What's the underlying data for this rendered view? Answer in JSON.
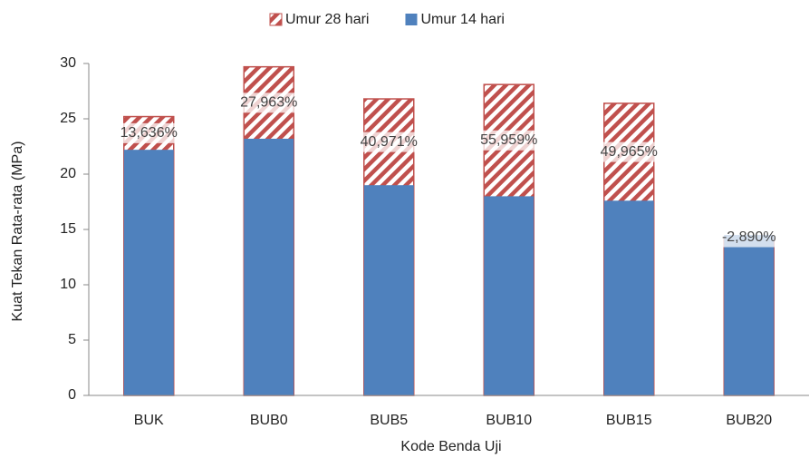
{
  "chart_data": {
    "type": "bar",
    "xlabel": "Kode Benda Uji",
    "ylabel": "Kuat Tekan Rata-rata (MPa)",
    "categories": [
      "BUK",
      "BUB0",
      "BUB5",
      "BUB10",
      "BUB15",
      "BUB20"
    ],
    "series": [
      {
        "name": "Umur 28 hari",
        "color": "#c0504d",
        "hatch": true,
        "values": [
          25.2,
          29.7,
          26.8,
          28.1,
          26.4,
          14.1
        ]
      },
      {
        "name": "Umur 14 hari",
        "color": "#4f81bd",
        "hatch": false,
        "values": [
          22.2,
          23.2,
          19.0,
          18.0,
          17.6,
          14.5
        ]
      }
    ],
    "annotations": [
      "13,636%",
      "27,963%",
      "40,971%",
      "55,959%",
      "49,965%",
      "-2,890%"
    ],
    "ylim": [
      0,
      30
    ],
    "yticks": [
      0,
      5,
      10,
      15,
      20,
      25,
      30
    ],
    "grid": false,
    "legend": "top"
  }
}
